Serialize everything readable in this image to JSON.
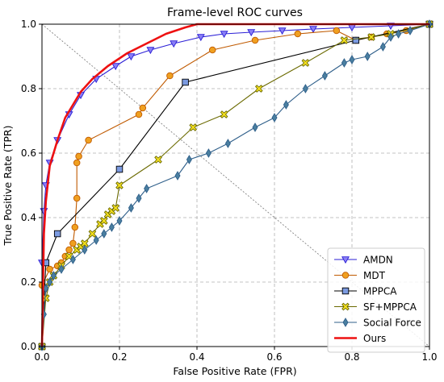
{
  "chart_data": {
    "type": "line",
    "title": "Frame-level ROC curves",
    "xlabel": "False Positive Rate (FPR)",
    "ylabel": "True Positive Rate (TPR)",
    "xlim": [
      0,
      1
    ],
    "ylim": [
      0,
      1
    ],
    "x_ticks": [
      "0.0",
      "0.2",
      "0.4",
      "0.6",
      "0.8",
      "1.0"
    ],
    "y_ticks": [
      "0.0",
      "0.2",
      "0.4",
      "0.6",
      "0.8",
      "1.0"
    ],
    "grid": true,
    "legend_position": "lower right",
    "reference_line": "diagonal",
    "series": [
      {
        "name": "AMDN",
        "color": "#2b1fd6",
        "marker_fill": "#8a7ff5",
        "marker": "triangle-down",
        "x": [
          0.0,
          0.005,
          0.01,
          0.02,
          0.04,
          0.07,
          0.1,
          0.14,
          0.19,
          0.23,
          0.28,
          0.34,
          0.41,
          0.47,
          0.54,
          0.62,
          0.7,
          0.8,
          0.9,
          1.0
        ],
        "y": [
          0.26,
          0.42,
          0.5,
          0.57,
          0.64,
          0.72,
          0.78,
          0.83,
          0.87,
          0.9,
          0.92,
          0.94,
          0.96,
          0.97,
          0.975,
          0.98,
          0.985,
          0.99,
          0.995,
          1.0
        ]
      },
      {
        "name": "MDT",
        "color": "#c05a00",
        "marker_fill": "#f0a020",
        "marker": "circle",
        "x": [
          0.0,
          0.0,
          0.02,
          0.04,
          0.05,
          0.06,
          0.07,
          0.08,
          0.085,
          0.09,
          0.09,
          0.095,
          0.12,
          0.25,
          0.26,
          0.33,
          0.44,
          0.55,
          0.66,
          0.76,
          0.81,
          0.85,
          0.89,
          0.94,
          1.0
        ],
        "y": [
          0.0,
          0.19,
          0.24,
          0.25,
          0.26,
          0.28,
          0.3,
          0.32,
          0.37,
          0.46,
          0.57,
          0.59,
          0.64,
          0.72,
          0.74,
          0.84,
          0.92,
          0.95,
          0.97,
          0.98,
          0.95,
          0.96,
          0.97,
          0.98,
          1.0
        ]
      },
      {
        "name": "MPPCA",
        "color": "#000000",
        "marker_fill": "#7b9ae0",
        "marker": "square",
        "x": [
          0.0,
          0.01,
          0.04,
          0.2,
          0.37,
          0.81,
          1.0
        ],
        "y": [
          0.0,
          0.26,
          0.35,
          0.55,
          0.82,
          0.95,
          1.0
        ]
      },
      {
        "name": "SF+MPPCA",
        "color": "#6b6a00",
        "marker_fill": "#f5e020",
        "marker": "x-filled",
        "x": [
          0.0,
          0.01,
          0.02,
          0.03,
          0.05,
          0.07,
          0.09,
          0.1,
          0.11,
          0.13,
          0.15,
          0.16,
          0.17,
          0.18,
          0.19,
          0.2,
          0.3,
          0.39,
          0.47,
          0.56,
          0.68,
          0.78,
          0.85,
          0.9,
          1.0
        ],
        "y": [
          0.0,
          0.15,
          0.2,
          0.22,
          0.25,
          0.28,
          0.3,
          0.31,
          0.32,
          0.35,
          0.38,
          0.39,
          0.41,
          0.42,
          0.43,
          0.5,
          0.58,
          0.68,
          0.72,
          0.8,
          0.88,
          0.95,
          0.96,
          0.97,
          1.0
        ]
      },
      {
        "name": "Social Force",
        "color": "#2f5f8a",
        "marker_fill": "#4a7fa0",
        "marker": "thin-diamond",
        "x": [
          0.0,
          0.005,
          0.01,
          0.02,
          0.03,
          0.05,
          0.08,
          0.11,
          0.14,
          0.16,
          0.18,
          0.2,
          0.23,
          0.25,
          0.27,
          0.35,
          0.38,
          0.43,
          0.48,
          0.55,
          0.6,
          0.63,
          0.68,
          0.73,
          0.78,
          0.8,
          0.84,
          0.88,
          0.9,
          0.92,
          0.95,
          1.0
        ],
        "y": [
          0.0,
          0.1,
          0.18,
          0.2,
          0.22,
          0.24,
          0.27,
          0.3,
          0.33,
          0.35,
          0.37,
          0.39,
          0.43,
          0.46,
          0.49,
          0.53,
          0.58,
          0.6,
          0.63,
          0.68,
          0.71,
          0.75,
          0.8,
          0.84,
          0.88,
          0.89,
          0.9,
          0.93,
          0.96,
          0.97,
          0.98,
          1.0
        ]
      },
      {
        "name": "Ours",
        "color": "#ee1111",
        "marker": "none",
        "x": [
          0.0,
          0.005,
          0.01,
          0.02,
          0.04,
          0.06,
          0.08,
          0.1,
          0.13,
          0.17,
          0.22,
          0.27,
          0.32,
          0.37,
          0.4,
          1.0
        ],
        "y": [
          0.0,
          0.35,
          0.45,
          0.56,
          0.64,
          0.71,
          0.75,
          0.79,
          0.83,
          0.87,
          0.91,
          0.94,
          0.97,
          0.99,
          1.0,
          1.0
        ]
      }
    ]
  }
}
